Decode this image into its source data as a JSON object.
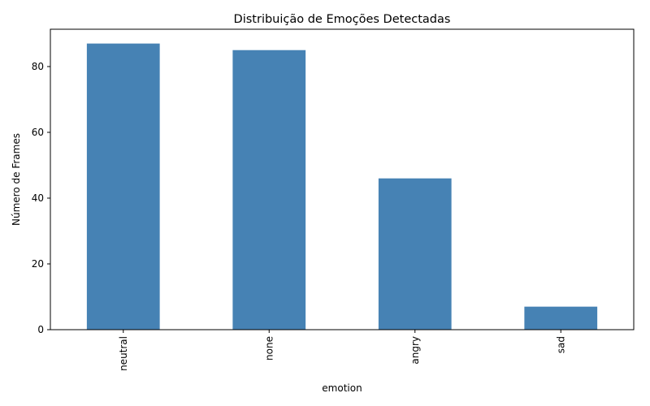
{
  "chart_data": {
    "type": "bar",
    "title": "Distribuição de Emoções Detectadas",
    "xlabel": "emotion",
    "ylabel": "Número de Frames",
    "categories": [
      "neutral",
      "none",
      "angry",
      "sad"
    ],
    "values": [
      87,
      85,
      46,
      7
    ],
    "ylim": [
      0,
      91.35
    ],
    "yticks": [
      0,
      20,
      40,
      60,
      80
    ],
    "bar_color": "#4682b4",
    "grid": false,
    "legend": "none",
    "x_tick_rotation": "vertical"
  }
}
